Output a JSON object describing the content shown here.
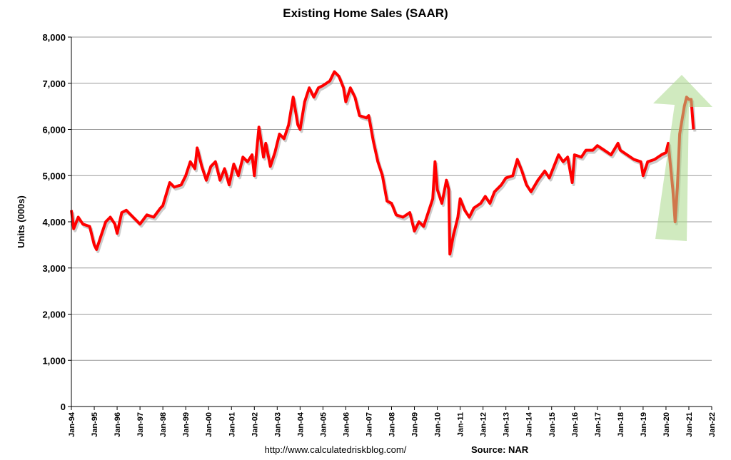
{
  "chart_data": {
    "type": "line",
    "title": "Existing Home Sales (SAAR)",
    "y_label": "Units (000s)",
    "footer_url": "http://www.calculatedriskblog.com/",
    "source": "Source: NAR",
    "series": [
      {
        "name": "Existing Home Sales",
        "color": "#ff0000",
        "x": [
          1994.0,
          1994.1,
          1994.3,
          1994.5,
          1994.8,
          1995.0,
          1995.1,
          1995.3,
          1995.5,
          1995.7,
          1995.9,
          1996.0,
          1996.2,
          1996.4,
          1996.7,
          1997.0,
          1997.3,
          1997.6,
          1997.9,
          1998.0,
          1998.3,
          1998.5,
          1998.8,
          1999.0,
          1999.2,
          1999.4,
          1999.5,
          1999.7,
          1999.9,
          2000.1,
          2000.3,
          2000.5,
          2000.7,
          2000.9,
          2001.1,
          2001.3,
          2001.5,
          2001.7,
          2001.9,
          2002.0,
          2002.2,
          2002.4,
          2002.5,
          2002.7,
          2002.9,
          2003.1,
          2003.3,
          2003.5,
          2003.7,
          2003.9,
          2004.0,
          2004.2,
          2004.4,
          2004.6,
          2004.8,
          2005.0,
          2005.3,
          2005.5,
          2005.7,
          2005.9,
          2006.0,
          2006.2,
          2006.4,
          2006.6,
          2006.9,
          2007.0,
          2007.2,
          2007.4,
          2007.6,
          2007.8,
          2008.0,
          2008.2,
          2008.5,
          2008.8,
          2009.0,
          2009.2,
          2009.4,
          2009.6,
          2009.8,
          2009.9,
          2010.0,
          2010.2,
          2010.4,
          2010.5,
          2010.55,
          2010.7,
          2010.9,
          2011.0,
          2011.2,
          2011.4,
          2011.6,
          2011.9,
          2012.1,
          2012.3,
          2012.5,
          2012.8,
          2013.0,
          2013.3,
          2013.5,
          2013.7,
          2013.9,
          2014.1,
          2014.4,
          2014.7,
          2014.9,
          2015.1,
          2015.3,
          2015.5,
          2015.7,
          2015.9,
          2016.0,
          2016.3,
          2016.5,
          2016.8,
          2017.0,
          2017.3,
          2017.6,
          2017.9,
          2018.0,
          2018.3,
          2018.6,
          2018.9,
          2019.0,
          2019.2,
          2019.5,
          2019.8,
          2020.0,
          2020.1,
          2020.3,
          2020.4,
          2020.5,
          2020.6,
          2020.8,
          2020.9,
          2021.0,
          2021.1,
          2021.2
        ],
        "values": [
          4250,
          3850,
          4100,
          3950,
          3900,
          3500,
          3400,
          3700,
          4000,
          4100,
          3950,
          3750,
          4200,
          4250,
          4100,
          3950,
          4150,
          4100,
          4300,
          4350,
          4850,
          4750,
          4800,
          5000,
          5300,
          5150,
          5600,
          5200,
          4900,
          5200,
          5300,
          4900,
          5150,
          4800,
          5250,
          5000,
          5400,
          5300,
          5450,
          5000,
          6050,
          5400,
          5700,
          5200,
          5500,
          5900,
          5800,
          6100,
          6700,
          6100,
          6000,
          6600,
          6900,
          6700,
          6900,
          6950,
          7050,
          7250,
          7150,
          6900,
          6600,
          6900,
          6700,
          6300,
          6250,
          6300,
          5750,
          5300,
          5000,
          4450,
          4400,
          4150,
          4100,
          4200,
          3800,
          4000,
          3900,
          4200,
          4500,
          5300,
          4700,
          4400,
          4900,
          4700,
          3300,
          3700,
          4100,
          4500,
          4250,
          4100,
          4300,
          4400,
          4550,
          4400,
          4650,
          4800,
          4950,
          5000,
          5350,
          5100,
          4800,
          4650,
          4900,
          5100,
          4950,
          5200,
          5450,
          5300,
          5400,
          4850,
          5450,
          5400,
          5550,
          5550,
          5650,
          5550,
          5450,
          5700,
          5550,
          5450,
          5350,
          5300,
          5000,
          5300,
          5350,
          5450,
          5500,
          5700,
          4700,
          4000,
          4750,
          5900,
          6500,
          6700,
          6650,
          6650,
          6000
        ]
      }
    ],
    "xlim": [
      1994,
      2022
    ],
    "xticks": [
      {
        "value": 1994,
        "label": "Jan-94"
      },
      {
        "value": 1995,
        "label": "Jan-95"
      },
      {
        "value": 1996,
        "label": "Jan-96"
      },
      {
        "value": 1997,
        "label": "Jan-97"
      },
      {
        "value": 1998,
        "label": "Jan-98"
      },
      {
        "value": 1999,
        "label": "Jan-99"
      },
      {
        "value": 2000,
        "label": "Jan-00"
      },
      {
        "value": 2001,
        "label": "Jan-01"
      },
      {
        "value": 2002,
        "label": "Jan-02"
      },
      {
        "value": 2003,
        "label": "Jan-03"
      },
      {
        "value": 2004,
        "label": "Jan-04"
      },
      {
        "value": 2005,
        "label": "Jan-05"
      },
      {
        "value": 2006,
        "label": "Jan-06"
      },
      {
        "value": 2007,
        "label": "Jan-07"
      },
      {
        "value": 2008,
        "label": "Jan-08"
      },
      {
        "value": 2009,
        "label": "Jan-09"
      },
      {
        "value": 2010,
        "label": "Jan-10"
      },
      {
        "value": 2011,
        "label": "Jan-11"
      },
      {
        "value": 2012,
        "label": "Jan-12"
      },
      {
        "value": 2013,
        "label": "Jan-13"
      },
      {
        "value": 2014,
        "label": "Jan-14"
      },
      {
        "value": 2015,
        "label": "Jan-15"
      },
      {
        "value": 2016,
        "label": "Jan-16"
      },
      {
        "value": 2017,
        "label": "Jan-17"
      },
      {
        "value": 2018,
        "label": "Jan-18"
      },
      {
        "value": 2019,
        "label": "Jan-19"
      },
      {
        "value": 2020,
        "label": "Jan-20"
      },
      {
        "value": 2021,
        "label": "Jan-21"
      },
      {
        "value": 2022,
        "label": "Jan-22"
      }
    ],
    "ylim": [
      0,
      8000
    ],
    "yticks": [
      0,
      {
        "value": 1000,
        "label": "1,000"
      },
      {
        "value": 2000,
        "label": "2,000"
      },
      {
        "value": 3000,
        "label": "3,000"
      },
      {
        "value": 4000,
        "label": "4,000"
      },
      {
        "value": 5000,
        "label": "5,000"
      },
      {
        "value": 6000,
        "label": "6,000"
      },
      {
        "value": 7000,
        "label": "7,000"
      },
      {
        "value": 8000,
        "label": "8,000"
      }
    ],
    "grid": true
  }
}
